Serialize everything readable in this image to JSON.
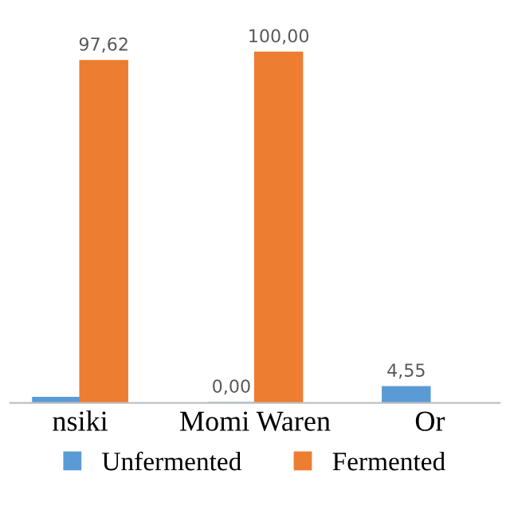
{
  "chart_data": {
    "type": "bar",
    "categories": [
      "nsiki",
      "Momi Waren",
      "Or"
    ],
    "series": [
      {
        "name": "Unfermented",
        "color": "#5b9bd5",
        "values": [
          1.5,
          0.0,
          4.55
        ],
        "value_labels": [
          null,
          "0,00",
          "4,55"
        ]
      },
      {
        "name": "Fermented",
        "color": "#ed7d31",
        "values": [
          97.62,
          100.0,
          null
        ],
        "value_labels": [
          "97,62",
          "100,00",
          null
        ]
      }
    ],
    "tick_labels": "x",
    "legend": "bottom"
  }
}
